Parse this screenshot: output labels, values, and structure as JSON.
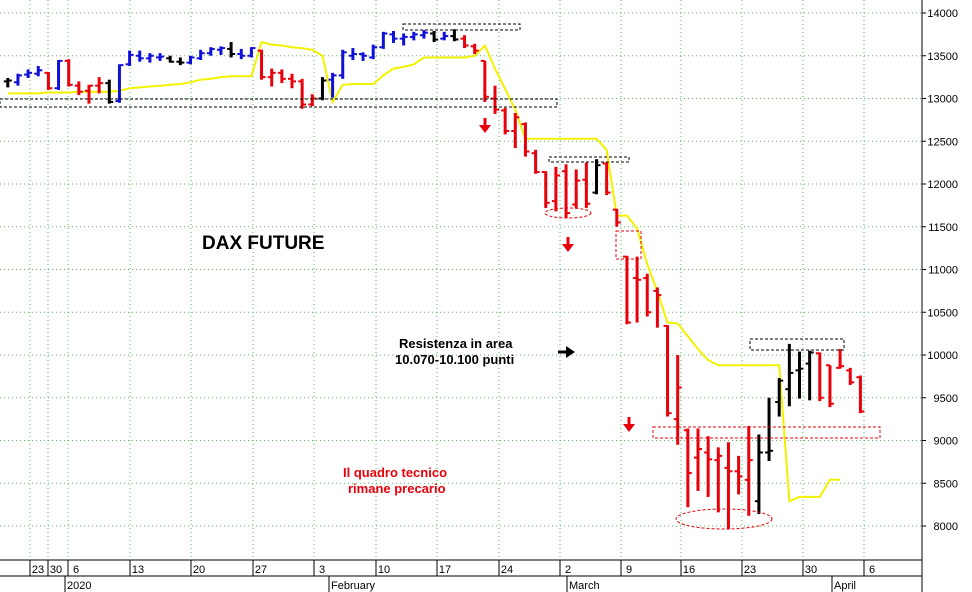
{
  "chart_data": {
    "type": "ohlc",
    "title": "DAX FUTURE",
    "ylim": [
      7700,
      14100
    ],
    "y_ticks": [
      8000,
      8500,
      9000,
      9500,
      10000,
      10500,
      11000,
      11500,
      12000,
      12500,
      13000,
      13500,
      14000
    ],
    "grid": true,
    "x_day_ticks": [
      "23",
      "30",
      "6",
      "13",
      "20",
      "27",
      "3",
      "10",
      "17",
      "24",
      "2",
      "9",
      "16",
      "23",
      "30",
      "6"
    ],
    "month_labels": [
      "2020",
      "February",
      "March",
      "April"
    ],
    "colors": {
      "up": "#1010d8",
      "down": "#e8000a",
      "neutral": "#000000",
      "envelope": "#f2f200",
      "grid": "#5ab85a"
    },
    "bars": [
      {
        "o": 13200,
        "h": 13240,
        "l": 13130,
        "c": 13210,
        "color": "neutral"
      },
      {
        "o": 13190,
        "h": 13290,
        "l": 13150,
        "c": 13270,
        "color": "up"
      },
      {
        "o": 13280,
        "h": 13340,
        "l": 13240,
        "c": 13300,
        "color": "up"
      },
      {
        "o": 13290,
        "h": 13380,
        "l": 13260,
        "c": 13330,
        "color": "up"
      },
      {
        "o": 13300,
        "h": 13310,
        "l": 13100,
        "c": 13120,
        "color": "down"
      },
      {
        "o": 13120,
        "h": 13450,
        "l": 13100,
        "c": 13440,
        "color": "up"
      },
      {
        "o": 13440,
        "h": 13460,
        "l": 13140,
        "c": 13160,
        "color": "down"
      },
      {
        "o": 13150,
        "h": 13200,
        "l": 13040,
        "c": 13080,
        "color": "down"
      },
      {
        "o": 13090,
        "h": 13160,
        "l": 12940,
        "c": 13150,
        "color": "down"
      },
      {
        "o": 13150,
        "h": 13250,
        "l": 13060,
        "c": 13180,
        "color": "down"
      },
      {
        "o": 13180,
        "h": 13220,
        "l": 12940,
        "c": 12960,
        "color": "neutral"
      },
      {
        "o": 12970,
        "h": 13400,
        "l": 12950,
        "c": 13390,
        "color": "up"
      },
      {
        "o": 13400,
        "h": 13560,
        "l": 13380,
        "c": 13510,
        "color": "up"
      },
      {
        "o": 13500,
        "h": 13560,
        "l": 13430,
        "c": 13470,
        "color": "up"
      },
      {
        "o": 13470,
        "h": 13530,
        "l": 13420,
        "c": 13500,
        "color": "up"
      },
      {
        "o": 13480,
        "h": 13530,
        "l": 13440,
        "c": 13490,
        "color": "up"
      },
      {
        "o": 13470,
        "h": 13500,
        "l": 13420,
        "c": 13430,
        "color": "neutral"
      },
      {
        "o": 13430,
        "h": 13480,
        "l": 13390,
        "c": 13420,
        "color": "neutral"
      },
      {
        "o": 13420,
        "h": 13500,
        "l": 13400,
        "c": 13480,
        "color": "up"
      },
      {
        "o": 13470,
        "h": 13570,
        "l": 13450,
        "c": 13530,
        "color": "up"
      },
      {
        "o": 13530,
        "h": 13600,
        "l": 13500,
        "c": 13580,
        "color": "up"
      },
      {
        "o": 13570,
        "h": 13610,
        "l": 13510,
        "c": 13590,
        "color": "up"
      },
      {
        "o": 13580,
        "h": 13660,
        "l": 13480,
        "c": 13520,
        "color": "neutral"
      },
      {
        "o": 13520,
        "h": 13580,
        "l": 13460,
        "c": 13500,
        "color": "up"
      },
      {
        "o": 13500,
        "h": 13600,
        "l": 13480,
        "c": 13590,
        "color": "up"
      },
      {
        "o": 13560,
        "h": 13570,
        "l": 13220,
        "c": 13250,
        "color": "down"
      },
      {
        "o": 13250,
        "h": 13350,
        "l": 13140,
        "c": 13300,
        "color": "down"
      },
      {
        "o": 13300,
        "h": 13340,
        "l": 13180,
        "c": 13230,
        "color": "down"
      },
      {
        "o": 13230,
        "h": 13290,
        "l": 13120,
        "c": 13200,
        "color": "down"
      },
      {
        "o": 13200,
        "h": 13230,
        "l": 12880,
        "c": 12930,
        "color": "down"
      },
      {
        "o": 12930,
        "h": 13050,
        "l": 12910,
        "c": 13000,
        "color": "down"
      },
      {
        "o": 13000,
        "h": 13250,
        "l": 12980,
        "c": 13210,
        "color": "neutral"
      },
      {
        "o": 13220,
        "h": 13300,
        "l": 13010,
        "c": 13270,
        "color": "up"
      },
      {
        "o": 13270,
        "h": 13570,
        "l": 13230,
        "c": 13540,
        "color": "up"
      },
      {
        "o": 13500,
        "h": 13590,
        "l": 13450,
        "c": 13520,
        "color": "up"
      },
      {
        "o": 13520,
        "h": 13540,
        "l": 13440,
        "c": 13500,
        "color": "up"
      },
      {
        "o": 13480,
        "h": 13630,
        "l": 13460,
        "c": 13600,
        "color": "up"
      },
      {
        "o": 13600,
        "h": 13780,
        "l": 13580,
        "c": 13760,
        "color": "up"
      },
      {
        "o": 13750,
        "h": 13790,
        "l": 13650,
        "c": 13700,
        "color": "up"
      },
      {
        "o": 13700,
        "h": 13760,
        "l": 13620,
        "c": 13720,
        "color": "up"
      },
      {
        "o": 13720,
        "h": 13780,
        "l": 13680,
        "c": 13750,
        "color": "up"
      },
      {
        "o": 13740,
        "h": 13800,
        "l": 13700,
        "c": 13770,
        "color": "up"
      },
      {
        "o": 13760,
        "h": 13790,
        "l": 13660,
        "c": 13690,
        "color": "neutral"
      },
      {
        "o": 13700,
        "h": 13780,
        "l": 13680,
        "c": 13730,
        "color": "up"
      },
      {
        "o": 13730,
        "h": 13810,
        "l": 13670,
        "c": 13690,
        "color": "neutral"
      },
      {
        "o": 13700,
        "h": 13740,
        "l": 13590,
        "c": 13620,
        "color": "down"
      },
      {
        "o": 13610,
        "h": 13640,
        "l": 13520,
        "c": 13560,
        "color": "down"
      },
      {
        "o": 13440,
        "h": 13440,
        "l": 12960,
        "c": 13020,
        "color": "down"
      },
      {
        "o": 13000,
        "h": 13150,
        "l": 12820,
        "c": 12870,
        "color": "down"
      },
      {
        "o": 12860,
        "h": 12890,
        "l": 12580,
        "c": 12620,
        "color": "down"
      },
      {
        "o": 12620,
        "h": 12830,
        "l": 12420,
        "c": 12780,
        "color": "down"
      },
      {
        "o": 12700,
        "h": 12720,
        "l": 12320,
        "c": 12380,
        "color": "down"
      },
      {
        "o": 12360,
        "h": 12400,
        "l": 12120,
        "c": 12140,
        "color": "down"
      },
      {
        "o": 12140,
        "h": 12150,
        "l": 11720,
        "c": 11780,
        "color": "down"
      },
      {
        "o": 11800,
        "h": 12200,
        "l": 11680,
        "c": 12100,
        "color": "down"
      },
      {
        "o": 12150,
        "h": 12230,
        "l": 11600,
        "c": 11660,
        "color": "down"
      },
      {
        "o": 11760,
        "h": 12170,
        "l": 11720,
        "c": 12040,
        "color": "down"
      },
      {
        "o": 12050,
        "h": 12250,
        "l": 11720,
        "c": 11770,
        "color": "down"
      },
      {
        "o": 11900,
        "h": 12290,
        "l": 11880,
        "c": 12220,
        "color": "neutral"
      },
      {
        "o": 12240,
        "h": 12250,
        "l": 11870,
        "c": 11900,
        "color": "down"
      },
      {
        "o": 11700,
        "h": 11710,
        "l": 11500,
        "c": 11550,
        "color": "down"
      },
      {
        "o": 11150,
        "h": 11160,
        "l": 10360,
        "c": 10380,
        "color": "down"
      },
      {
        "o": 10900,
        "h": 11150,
        "l": 10380,
        "c": 10880,
        "color": "down"
      },
      {
        "o": 10900,
        "h": 10950,
        "l": 10450,
        "c": 10500,
        "color": "down"
      },
      {
        "o": 10750,
        "h": 10790,
        "l": 10320,
        "c": 10700,
        "color": "down"
      },
      {
        "o": 10340,
        "h": 10350,
        "l": 9280,
        "c": 9320,
        "color": "down"
      },
      {
        "o": 9250,
        "h": 10000,
        "l": 8950,
        "c": 9620,
        "color": "down"
      },
      {
        "o": 9120,
        "h": 9140,
        "l": 8220,
        "c": 8620,
        "color": "down"
      },
      {
        "o": 8800,
        "h": 9140,
        "l": 8410,
        "c": 8900,
        "color": "down"
      },
      {
        "o": 8860,
        "h": 9050,
        "l": 8340,
        "c": 8780,
        "color": "down"
      },
      {
        "o": 8770,
        "h": 8920,
        "l": 8160,
        "c": 8820,
        "color": "down"
      },
      {
        "o": 8680,
        "h": 8980,
        "l": 7960,
        "c": 8640,
        "color": "down"
      },
      {
        "o": 8640,
        "h": 8820,
        "l": 8370,
        "c": 8580,
        "color": "down"
      },
      {
        "o": 8540,
        "h": 9170,
        "l": 8120,
        "c": 8770,
        "color": "down"
      },
      {
        "o": 8290,
        "h": 9070,
        "l": 8140,
        "c": 8860,
        "color": "neutral"
      },
      {
        "o": 8860,
        "h": 9500,
        "l": 8760,
        "c": 8880,
        "color": "neutral"
      },
      {
        "o": 9450,
        "h": 9730,
        "l": 9280,
        "c": 9700,
        "color": "neutral"
      },
      {
        "o": 9600,
        "h": 10130,
        "l": 9400,
        "c": 9790,
        "color": "neutral"
      },
      {
        "o": 9820,
        "h": 10040,
        "l": 9490,
        "c": 9840,
        "color": "neutral"
      },
      {
        "o": 9900,
        "h": 10050,
        "l": 9470,
        "c": 10030,
        "color": "neutral"
      },
      {
        "o": 10020,
        "h": 10030,
        "l": 9460,
        "c": 9500,
        "color": "down"
      },
      {
        "o": 9880,
        "h": 9880,
        "l": 9390,
        "c": 9430,
        "color": "down"
      },
      {
        "o": 9850,
        "h": 10070,
        "l": 9840,
        "c": 9870,
        "color": "down"
      },
      {
        "o": 9820,
        "h": 9850,
        "l": 9650,
        "c": 9680,
        "color": "down"
      },
      {
        "o": 9740,
        "h": 9760,
        "l": 9320,
        "c": 9340,
        "color": "down"
      }
    ],
    "envelope": [
      13060,
      13060,
      13060,
      13060,
      13070,
      13070,
      13070,
      13080,
      13080,
      13080,
      13080,
      13090,
      13120,
      13130,
      13140,
      13150,
      13160,
      13170,
      13190,
      13220,
      13230,
      13250,
      13260,
      13260,
      13260,
      13660,
      13630,
      13620,
      13600,
      13590,
      13570,
      13500,
      12960,
      13160,
      13170,
      13170,
      13170,
      13270,
      13350,
      13370,
      13400,
      13480,
      13480,
      13480,
      13480,
      13480,
      13500,
      13620,
      13350,
      13110,
      12870,
      12530,
      12530,
      12530,
      12530,
      12530,
      12530,
      12530,
      12530,
      12400,
      11630,
      11630,
      11480,
      11060,
      10740,
      10380,
      10370,
      10220,
      10070,
      9940,
      9880,
      9880,
      9880,
      9880,
      9880,
      9880,
      9880,
      8290,
      8340,
      8340,
      8340,
      8540,
      8540
    ],
    "annotations": {
      "title": "DAX FUTURE",
      "resistance_line1": "Resistenza in area",
      "resistance_line2": "10.070-10.100 punti",
      "outlook_line1": "Il quadro tecnico",
      "outlook_line2": "rimane precario"
    }
  }
}
